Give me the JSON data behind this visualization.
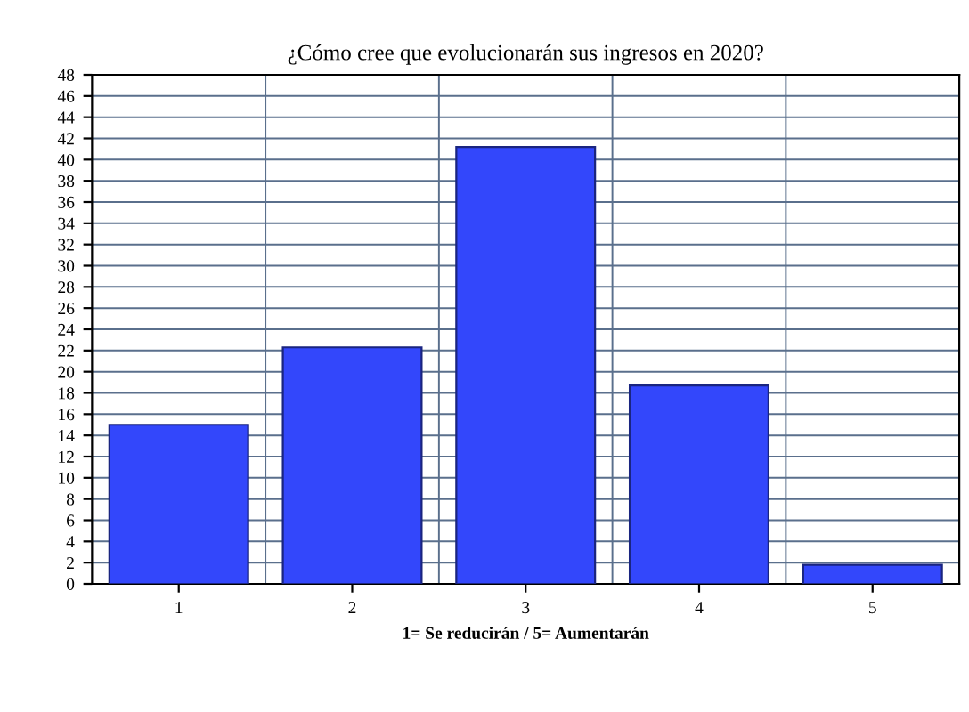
{
  "chart_data": {
    "type": "bar",
    "title": "¿Cómo cree que evolucionarán sus ingresos en 2020?",
    "xlabel": "1= Se reducirán / 5= Aumentarán",
    "categories": [
      "1",
      "2",
      "3",
      "4",
      "5"
    ],
    "values": [
      15,
      22.3,
      41.2,
      18.7,
      1.8
    ],
    "color": "#3347fb",
    "ylim": [
      0,
      48
    ],
    "yticks": [
      0,
      2,
      4,
      6,
      8,
      10,
      12,
      14,
      16,
      18,
      20,
      22,
      24,
      26,
      28,
      30,
      32,
      34,
      36,
      38,
      40,
      42,
      44,
      46,
      48
    ],
    "grid": true
  }
}
